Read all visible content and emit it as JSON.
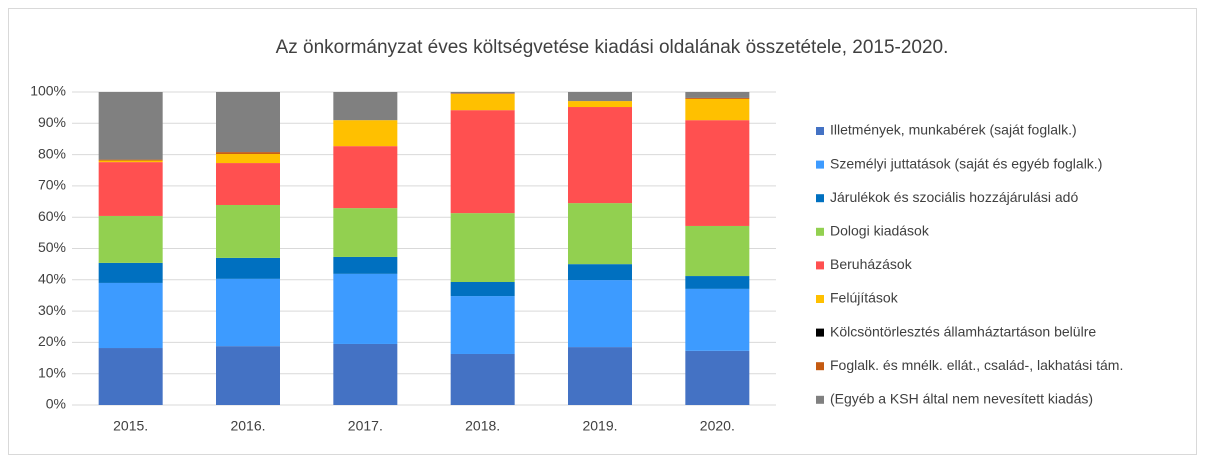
{
  "chart_data": {
    "type": "stacked_bar_100",
    "title": "Az önkormányzat éves költségvetése kiadási oldalának összetétele, 2015-2020.",
    "categories": [
      "2015.",
      "2016.",
      "2017.",
      "2018.",
      "2019.",
      "2020."
    ],
    "series": [
      {
        "name": "Illetmények, munkabérek (saját foglalk.)",
        "color": "#4472c4",
        "values": [
          18.2,
          18.8,
          19.5,
          16.3,
          18.5,
          17.3
        ]
      },
      {
        "name": "Személyi juttatások (saját és egyéb foglalk.)",
        "color": "#3d9bff",
        "values": [
          20.8,
          21.5,
          22.4,
          18.5,
          21.4,
          19.8
        ]
      },
      {
        "name": "Járulékok és szociális hozzájárulási adó",
        "color": "#0070c0",
        "values": [
          6.4,
          6.7,
          5.4,
          4.5,
          5.1,
          4.1
        ]
      },
      {
        "name": "Dologi kiadások",
        "color": "#92d050",
        "values": [
          15.0,
          16.9,
          15.6,
          22.0,
          19.5,
          16.0
        ]
      },
      {
        "name": "Beruházások",
        "color": "#ff5050",
        "values": [
          17.2,
          13.4,
          19.8,
          32.9,
          30.7,
          33.8
        ]
      },
      {
        "name": "Felújítások",
        "color": "#ffc000",
        "values": [
          0.5,
          2.9,
          8.3,
          5.2,
          1.9,
          6.8
        ]
      },
      {
        "name": "Kölcsöntörlesztés államháztartáson belülre",
        "color": "#000000",
        "values": [
          0,
          0,
          0,
          0,
          0,
          0
        ]
      },
      {
        "name": "Foglalk. és mnélk. ellát., család-, lakhatási tám.",
        "color": "#c55a11",
        "values": [
          0.3,
          0.6,
          0,
          0.2,
          0,
          0.3
        ]
      },
      {
        "name": "(Egyéb a KSH által nem nevesített kiadás)",
        "color": "#808080",
        "values": [
          21.6,
          19.2,
          9.0,
          0.4,
          2.9,
          1.9
        ]
      }
    ],
    "ylim": [
      0,
      100
    ],
    "yticks": [
      {
        "value": 0,
        "label": "0%"
      },
      {
        "value": 10,
        "label": "10%"
      },
      {
        "value": 20,
        "label": "20%"
      },
      {
        "value": 30,
        "label": "30%"
      },
      {
        "value": 40,
        "label": "40%"
      },
      {
        "value": 50,
        "label": "50%"
      },
      {
        "value": 60,
        "label": "60%"
      },
      {
        "value": 70,
        "label": "70%"
      },
      {
        "value": 80,
        "label": "80%"
      },
      {
        "value": 90,
        "label": "90%"
      },
      {
        "value": 100,
        "label": "100%"
      }
    ],
    "legend": "right"
  }
}
